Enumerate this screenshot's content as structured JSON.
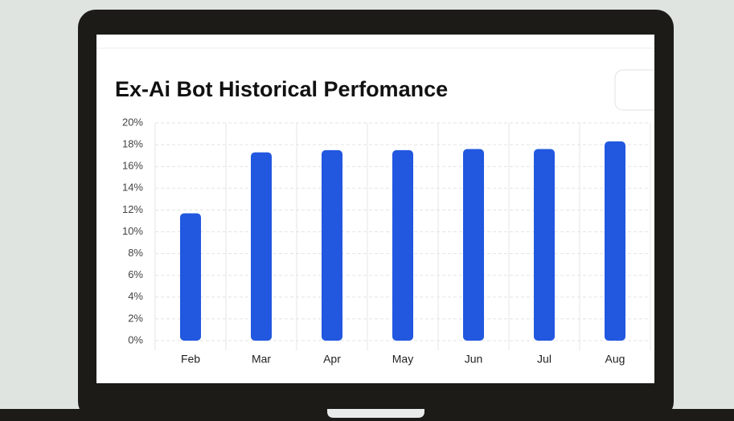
{
  "chart_data": {
    "type": "bar",
    "title": "Ex-Ai Bot Historical Perfomance",
    "categories": [
      "Feb",
      "Mar",
      "Apr",
      "May",
      "Jun",
      "Jul",
      "Aug"
    ],
    "values": [
      11.7,
      17.3,
      17.5,
      17.5,
      17.6,
      17.6,
      18.3
    ],
    "color": "#2257e0",
    "ylim": [
      0,
      20
    ],
    "yticks": [
      {
        "value": 0,
        "label": "0%"
      },
      {
        "value": 2,
        "label": "2%"
      },
      {
        "value": 4,
        "label": "4%"
      },
      {
        "value": 6,
        "label": "6%"
      },
      {
        "value": 8,
        "label": "8%"
      },
      {
        "value": 10,
        "label": "10%"
      },
      {
        "value": 12,
        "label": "12%"
      },
      {
        "value": 14,
        "label": "14%"
      },
      {
        "value": 16,
        "label": "16%"
      },
      {
        "value": 18,
        "label": "18%"
      },
      {
        "value": 20,
        "label": "20%"
      }
    ],
    "grid": true
  }
}
